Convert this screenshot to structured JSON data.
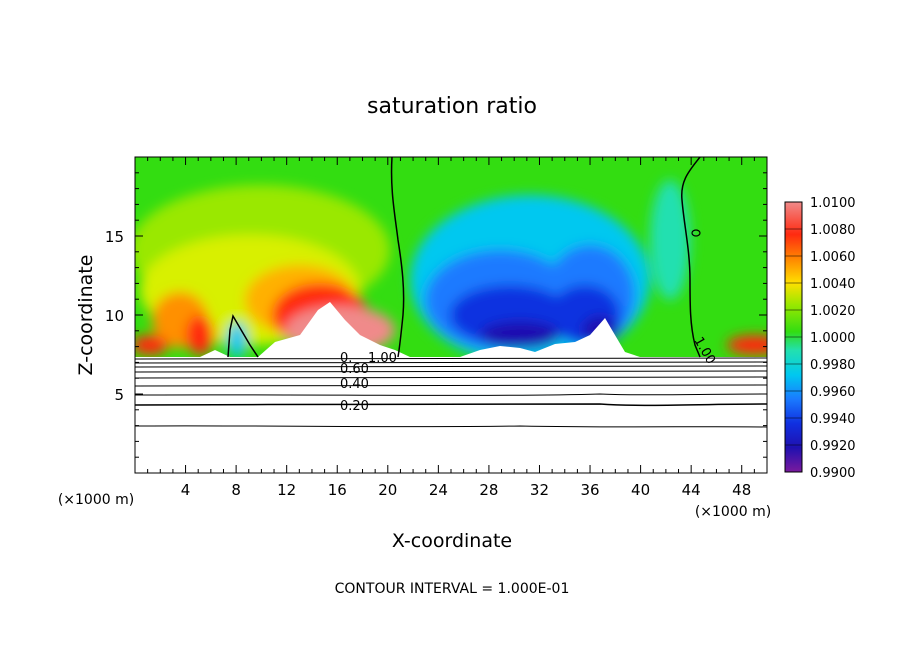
{
  "chart_data": {
    "type": "heatmap",
    "title": "saturation ratio",
    "xlabel": "X-coordinate",
    "ylabel": "Z-coordinate",
    "x_units": "(×1000 m)",
    "z_units": "(×1000 m)",
    "xlim": [
      0,
      50
    ],
    "ylim": [
      0,
      20
    ],
    "x_ticks": [
      4,
      8,
      12,
      16,
      20,
      24,
      28,
      32,
      36,
      40,
      44,
      48
    ],
    "y_ticks": [
      5,
      10,
      15
    ],
    "colorbar": {
      "labels": [
        "1.0100",
        "1.0080",
        "1.0060",
        "1.0040",
        "1.0020",
        "1.0000",
        "0.9980",
        "0.9960",
        "0.9940",
        "0.9920",
        "0.9900"
      ],
      "range": [
        0.99,
        1.01
      ]
    },
    "contour_labels": [
      "1.00",
      "1.00",
      "0.40",
      "0.20"
    ],
    "footnote": "CONTOUR INTERVAL = 1.000E-01"
  },
  "colors": {
    "plot_background": "#33dd11",
    "ramp": [
      "#7a1a9e",
      "#1f10b0",
      "#1030e0",
      "#1a7aff",
      "#00c8f0",
      "#22e0b0",
      "#33dd11",
      "#d8f000",
      "#ffd000",
      "#ff7800",
      "#ff2a10",
      "#f08a8a"
    ]
  }
}
